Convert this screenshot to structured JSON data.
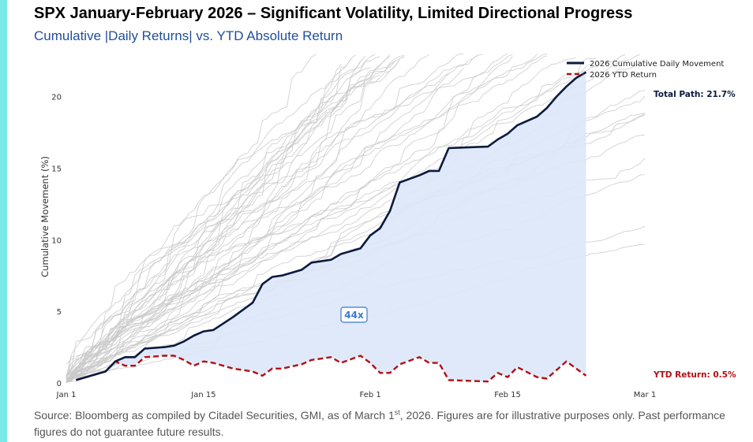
{
  "header": {
    "title": "SPX January-February 2026 – Significant Volatility, Limited Directional Progress",
    "subtitle": "Cumulative |Daily Returns| vs. YTD Absolute Return"
  },
  "footer": {
    "source_pre": "Source: Bloomberg as compiled by Citadel Securities, GMI, as of March 1",
    "source_sup": "st",
    "source_post": ", 2026. Figures are for illustrative purposes only. Past performance figures do not guarantee future results."
  },
  "colors": {
    "accent_bar": "#7ae8e6",
    "cumulative_line": "#0c1a3e",
    "ytd_line": "#b40f14",
    "fill": "#dbe7f8",
    "history_lines": "#c9c9c9",
    "ratio_box": "#3b7ad1"
  },
  "chart_data": {
    "type": "line",
    "ylabel": "Cumulative Movement (%)",
    "ylim": [
      0,
      23
    ],
    "yticks": [
      0,
      5,
      10,
      15,
      20
    ],
    "x_range_days": [
      1,
      60
    ],
    "xticks": [
      {
        "label": "Jan 1",
        "day": 1
      },
      {
        "label": "Jan 15",
        "day": 15
      },
      {
        "label": "Feb 1",
        "day": 32
      },
      {
        "label": "Feb 15",
        "day": 46
      },
      {
        "label": "Mar 1",
        "day": 60
      }
    ],
    "legend": [
      "2026 Cumulative Daily Movement",
      "2026 YTD Return"
    ],
    "legend_position": "top-right",
    "series": [
      {
        "name": "2026 Cumulative Daily Movement",
        "style": "solid",
        "points": [
          [
            2.0,
            0.2
          ],
          [
            5.0,
            0.8
          ],
          [
            6.0,
            1.5
          ],
          [
            7.0,
            1.8
          ],
          [
            8.0,
            1.8
          ],
          [
            9.0,
            2.4
          ],
          [
            11.0,
            2.5
          ],
          [
            12.0,
            2.6
          ],
          [
            13.0,
            2.9
          ],
          [
            14.0,
            3.3
          ],
          [
            15.0,
            3.6
          ],
          [
            16.0,
            3.7
          ],
          [
            18.0,
            4.6
          ],
          [
            20.0,
            5.6
          ],
          [
            21.0,
            6.9
          ],
          [
            22.0,
            7.4
          ],
          [
            23.0,
            7.5
          ],
          [
            25.0,
            7.9
          ],
          [
            26.0,
            8.4
          ],
          [
            28.0,
            8.6
          ],
          [
            29.0,
            9.0
          ],
          [
            31.0,
            9.4
          ],
          [
            32.0,
            10.3
          ],
          [
            33.0,
            10.8
          ],
          [
            34.0,
            12.0
          ],
          [
            35.0,
            14.0
          ],
          [
            37.0,
            14.5
          ],
          [
            38.0,
            14.8
          ],
          [
            39.0,
            14.8
          ],
          [
            40.0,
            16.4
          ],
          [
            44.0,
            16.5
          ],
          [
            45.0,
            17.0
          ],
          [
            46.0,
            17.4
          ],
          [
            47.0,
            18.0
          ],
          [
            49.0,
            18.6
          ],
          [
            50.0,
            19.2
          ],
          [
            51.0,
            20.0
          ],
          [
            52.0,
            20.7
          ],
          [
            53.0,
            21.3
          ],
          [
            54.0,
            21.7
          ]
        ]
      },
      {
        "name": "2026 YTD Return",
        "style": "dashed",
        "points": [
          [
            2.0,
            0.2
          ],
          [
            5.0,
            0.8
          ],
          [
            6.0,
            1.5
          ],
          [
            7.0,
            1.2
          ],
          [
            8.0,
            1.2
          ],
          [
            9.0,
            1.8
          ],
          [
            11.0,
            1.9
          ],
          [
            12.0,
            1.9
          ],
          [
            13.0,
            1.6
          ],
          [
            14.0,
            1.2
          ],
          [
            15.0,
            1.5
          ],
          [
            16.0,
            1.4
          ],
          [
            18.0,
            1.0
          ],
          [
            20.0,
            0.8
          ],
          [
            21.0,
            0.5
          ],
          [
            22.0,
            1.0
          ],
          [
            23.0,
            1.0
          ],
          [
            25.0,
            1.3
          ],
          [
            26.0,
            1.6
          ],
          [
            28.0,
            1.8
          ],
          [
            29.0,
            1.4
          ],
          [
            31.0,
            1.9
          ],
          [
            32.0,
            1.4
          ],
          [
            33.0,
            0.7
          ],
          [
            34.0,
            0.7
          ],
          [
            35.0,
            1.3
          ],
          [
            37.0,
            1.8
          ],
          [
            38.0,
            1.4
          ],
          [
            39.0,
            1.4
          ],
          [
            40.0,
            0.2
          ],
          [
            44.0,
            0.1
          ],
          [
            45.0,
            0.7
          ],
          [
            46.0,
            0.4
          ],
          [
            47.0,
            1.1
          ],
          [
            49.0,
            0.4
          ],
          [
            50.0,
            0.3
          ],
          [
            51.0,
            0.9
          ],
          [
            52.0,
            1.5
          ],
          [
            53.0,
            1.0
          ],
          [
            54.0,
            0.5
          ]
        ]
      }
    ],
    "annotations": {
      "total_path": "Total Path: 21.7%",
      "ytd_return": "YTD Return: 0.5%",
      "ratio": "44x"
    }
  }
}
